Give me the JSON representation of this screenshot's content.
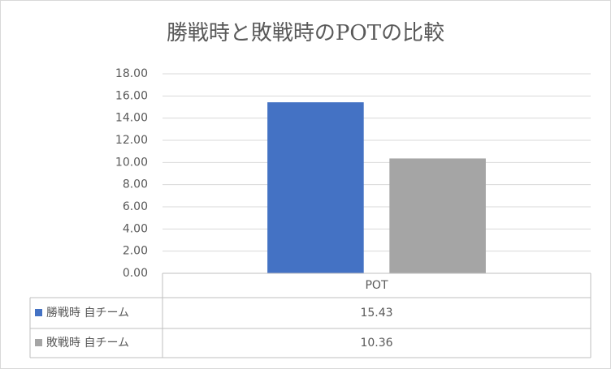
{
  "chart_data": {
    "type": "bar",
    "title": "勝戦時と敗戦時のPOTの比較",
    "categories": [
      "POT"
    ],
    "series": [
      {
        "name": "勝戦時 自チーム",
        "color": "#4472c4",
        "values": [
          15.43
        ]
      },
      {
        "name": "敗戦時 自チーム",
        "color": "#a5a5a5",
        "values": [
          10.36
        ]
      }
    ],
    "ylim": [
      0,
      18
    ],
    "yticks": [
      {
        "value": 0,
        "label": "0.00"
      },
      {
        "value": 2,
        "label": "2.00"
      },
      {
        "value": 4,
        "label": "4.00"
      },
      {
        "value": 6,
        "label": "6.00"
      },
      {
        "value": 8,
        "label": "8.00"
      },
      {
        "value": 10,
        "label": "10.00"
      },
      {
        "value": 12,
        "label": "12.00"
      },
      {
        "value": 14,
        "label": "14.00"
      },
      {
        "value": 16,
        "label": "16.00"
      },
      {
        "value": 18,
        "label": "18.00"
      }
    ],
    "grid": true,
    "data_table": true
  }
}
